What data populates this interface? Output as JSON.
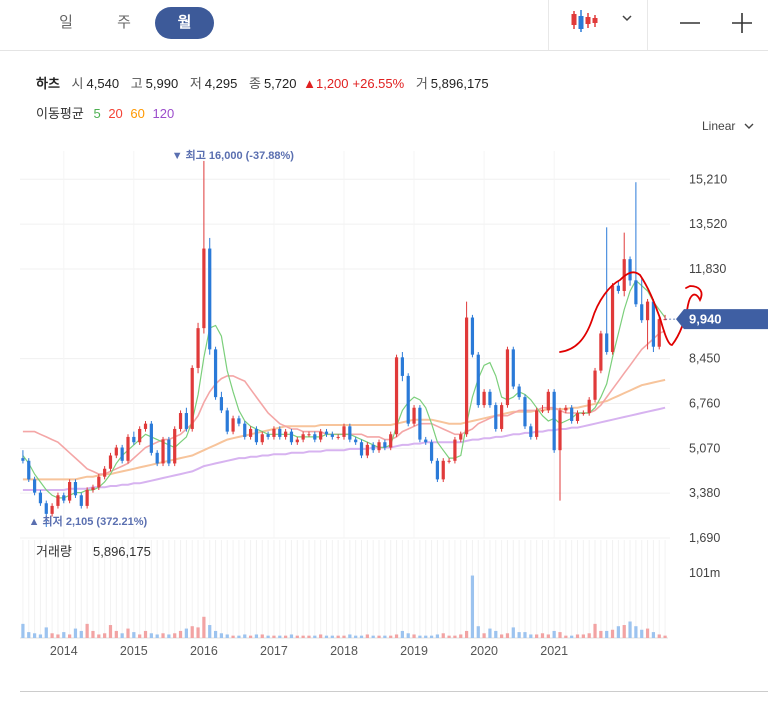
{
  "tabs": [
    {
      "label": "일",
      "active": false
    },
    {
      "label": "주",
      "active": false
    },
    {
      "label": "월",
      "active": true
    }
  ],
  "toolbar": {
    "chart_type_icon": "candlestick-icon",
    "dropdown_icon": "chevron-down-icon",
    "zoom_out_icon": "minus-icon",
    "zoom_in_icon": "plus-icon"
  },
  "quote": {
    "name": "하츠",
    "open_label": "시",
    "open": "4,540",
    "high_label": "고",
    "high": "5,990",
    "low_label": "저",
    "low": "4,295",
    "close_label": "종",
    "close": "5,720",
    "change": "▲1,200",
    "change_pct": "+26.55%",
    "volume_label": "거",
    "volume": "5,896,175"
  },
  "ma_legend": {
    "label": "이동평균",
    "items": [
      {
        "period": "5",
        "color": "#4caf50"
      },
      {
        "period": "20",
        "color": "#f44336"
      },
      {
        "period": "60",
        "color": "#ff9800"
      },
      {
        "period": "120",
        "color": "#9c4dcc"
      }
    ]
  },
  "scale_label": "Linear",
  "colors": {
    "up": "#e03a3a",
    "down": "#2a7ad8",
    "current_price_bg": "#3f5fa3",
    "annotation": "#e00000",
    "max_label": "#5a6fb0"
  },
  "chart_data": {
    "type": "candlestick",
    "title": "하츠",
    "x_ticks": [
      "2014",
      "2015",
      "2016",
      "2017",
      "2018",
      "2019",
      "2020",
      "2021"
    ],
    "y_ticks": [
      "15,210",
      "13,520",
      "11,830",
      "9,940",
      "8,450",
      "6,760",
      "5,070",
      "3,380",
      "1,690"
    ],
    "y_tick_values": [
      15210,
      13520,
      11830,
      8450,
      6760,
      5070,
      3380,
      1690
    ],
    "ylim": [
      1690,
      15900
    ],
    "current_price": "9,940",
    "current_price_value": 9940,
    "max_label": "▼ 최고 16,000 (-37.88%)",
    "max": {
      "value": 16000,
      "date": "2015-08"
    },
    "min_label": "▲ 최저 2,105 (372.21%)",
    "min": {
      "value": 2105,
      "date": "2013-08"
    },
    "volume_label": "거래량",
    "volume_value": "5,896,175",
    "volume_axis_label": "101m",
    "volume_axis_value": 101000000,
    "candles_open": [
      4700,
      4600,
      3900,
      3400,
      3000,
      2600,
      2900,
      3300,
      3100,
      3800,
      3300,
      2900,
      3500,
      3600,
      4000,
      4300,
      4800,
      5100,
      4600,
      5500,
      5300,
      5800,
      6000,
      4900,
      4500,
      5400,
      4500,
      5800,
      6400,
      5800,
      8100,
      9600,
      12600,
      8800,
      7000,
      6500,
      5700,
      6200,
      6000,
      5500,
      5800,
      5300,
      5600,
      5500,
      5800,
      5500,
      5700,
      5300,
      5400,
      5600,
      5600,
      5400,
      5700,
      5600,
      5500,
      5500,
      5900,
      5400,
      5300,
      4800,
      5200,
      5000,
      5300,
      5100,
      5600,
      8500,
      7800,
      6000,
      6600,
      5400,
      5300,
      4600,
      3900,
      4600,
      4600,
      5400,
      5600,
      10000,
      8600,
      6700,
      7200,
      6700,
      5800,
      6700,
      8800,
      7400,
      7000,
      5900,
      5500,
      6500,
      6500,
      7200,
      5000,
      6500,
      6600,
      6100,
      6400,
      6400,
      6900,
      8000,
      9400,
      8700,
      11200,
      11000,
      12200,
      11400,
      10500,
      9900,
      10600,
      8900,
      9940
    ],
    "candles_close": [
      4600,
      3900,
      3400,
      3000,
      2600,
      2900,
      3300,
      3100,
      3800,
      3300,
      2900,
      3500,
      3600,
      4000,
      4300,
      4800,
      5100,
      4600,
      5500,
      5300,
      5800,
      6000,
      4900,
      4500,
      5400,
      4500,
      5800,
      6400,
      5800,
      8100,
      9600,
      12600,
      8800,
      7000,
      6500,
      5700,
      6200,
      6000,
      5500,
      5800,
      5300,
      5600,
      5500,
      5800,
      5500,
      5700,
      5300,
      5400,
      5600,
      5600,
      5400,
      5700,
      5600,
      5500,
      5500,
      5900,
      5400,
      5300,
      4800,
      5200,
      5000,
      5300,
      5100,
      5600,
      8500,
      7800,
      6000,
      6600,
      5400,
      5300,
      4600,
      3900,
      4600,
      4600,
      5400,
      5600,
      10000,
      8600,
      6700,
      7200,
      6700,
      5800,
      6700,
      8800,
      7400,
      7000,
      5900,
      5500,
      6500,
      6500,
      7200,
      5000,
      6500,
      6600,
      6100,
      6400,
      6400,
      6900,
      8000,
      9400,
      8700,
      11200,
      11000,
      12200,
      11400,
      10500,
      9900,
      10600,
      8900,
      9940,
      9940
    ],
    "candles_high": [
      5000,
      4700,
      4000,
      3500,
      3100,
      3000,
      3400,
      3400,
      3900,
      3900,
      3400,
      3600,
      3700,
      4100,
      4400,
      4900,
      5200,
      5200,
      5600,
      5700,
      5900,
      6100,
      6100,
      5000,
      5500,
      5500,
      5900,
      6500,
      6600,
      8200,
      9800,
      15900,
      13000,
      8900,
      7200,
      6600,
      6300,
      6300,
      6100,
      5900,
      5900,
      5700,
      5700,
      5900,
      5900,
      5800,
      5800,
      5500,
      5700,
      5700,
      5700,
      5800,
      5800,
      5700,
      5600,
      6000,
      6000,
      5500,
      5400,
      5300,
      5300,
      5400,
      5400,
      5700,
      8600,
      8700,
      7900,
      6700,
      6700,
      5500,
      5400,
      4700,
      4700,
      4700,
      5500,
      5700,
      10600,
      10100,
      8700,
      7300,
      7300,
      6800,
      6800,
      8900,
      8900,
      7500,
      7100,
      6000,
      6600,
      6700,
      7300,
      7300,
      6600,
      6700,
      6700,
      6500,
      6500,
      7000,
      8100,
      9500,
      13400,
      11300,
      11400,
      13200,
      12300,
      15100,
      11500,
      10700,
      10700,
      10100,
      10100
    ],
    "candles_low": [
      4500,
      3800,
      3300,
      2900,
      2105,
      2500,
      2800,
      3000,
      3000,
      3200,
      2800,
      2800,
      3400,
      3500,
      3900,
      4200,
      4700,
      4500,
      4500,
      5200,
      5200,
      5700,
      4800,
      4400,
      4400,
      4400,
      4400,
      5700,
      5700,
      5700,
      7900,
      9400,
      8600,
      6900,
      6400,
      5600,
      5600,
      5900,
      5400,
      5400,
      5200,
      5200,
      5400,
      5400,
      5400,
      5400,
      5200,
      5200,
      5300,
      5500,
      5300,
      5300,
      5500,
      5400,
      5400,
      5400,
      5300,
      5200,
      4700,
      4700,
      4900,
      4900,
      5000,
      5000,
      5500,
      7600,
      5900,
      5900,
      5300,
      5200,
      4500,
      3800,
      3800,
      4500,
      4500,
      5300,
      5500,
      8500,
      6600,
      6600,
      6600,
      5700,
      5700,
      6600,
      7300,
      6900,
      5800,
      5400,
      5400,
      6400,
      6400,
      4900,
      3100,
      6400,
      6000,
      6000,
      6300,
      6300,
      6800,
      7900,
      8600,
      8600,
      10900,
      10800,
      11200,
      10400,
      9800,
      8800,
      8700,
      8800,
      9900
    ],
    "ma5": [
      4800,
      4500,
      4100,
      3800,
      3500,
      3300,
      3200,
      3200,
      3300,
      3400,
      3400,
      3500,
      3500,
      3600,
      3800,
      4100,
      4500,
      4800,
      5000,
      5200,
      5400,
      5600,
      5500,
      5400,
      5300,
      5200,
      5100,
      5300,
      5500,
      6100,
      7100,
      8500,
      9600,
      9700,
      9300,
      8000,
      7200,
      6500,
      6100,
      5900,
      5800,
      5700,
      5600,
      5600,
      5600,
      5600,
      5600,
      5500,
      5500,
      5500,
      5500,
      5500,
      5600,
      5600,
      5600,
      5600,
      5600,
      5500,
      5400,
      5300,
      5200,
      5100,
      5100,
      5200,
      5900,
      6500,
      6800,
      7000,
      6900,
      6600,
      6000,
      5300,
      5000,
      4700,
      4700,
      4800,
      6000,
      7000,
      7700,
      8200,
      8300,
      7800,
      7000,
      6900,
      7000,
      7200,
      7100,
      6900,
      6600,
      6300,
      6100,
      6200,
      6000,
      6100,
      6200,
      6400,
      6400,
      6400,
      6600,
      7000,
      7500,
      8500,
      9400,
      10300,
      11000,
      11400,
      11200,
      11000,
      10600,
      10300,
      10000
    ],
    "ma20": [
      5700,
      5700,
      5700,
      5600,
      5500,
      5400,
      5300,
      5100,
      4900,
      4700,
      4500,
      4300,
      4200,
      4100,
      4100,
      4200,
      4300,
      4400,
      4500,
      4700,
      4900,
      5100,
      5200,
      5300,
      5400,
      5400,
      5500,
      5600,
      5800,
      6000,
      6300,
      6800,
      7200,
      7500,
      7700,
      7800,
      7800,
      7700,
      7600,
      7300,
      7000,
      6700,
      6400,
      6200,
      6000,
      5900,
      5800,
      5800,
      5700,
      5700,
      5700,
      5700,
      5600,
      5600,
      5600,
      5600,
      5600,
      5600,
      5600,
      5500,
      5500,
      5500,
      5400,
      5400,
      5500,
      5700,
      5800,
      5900,
      6000,
      6000,
      6000,
      5900,
      5800,
      5700,
      5600,
      5600,
      5700,
      5800,
      6000,
      6100,
      6200,
      6300,
      6300,
      6300,
      6400,
      6500,
      6500,
      6500,
      6500,
      6600,
      6600,
      6600,
      6500,
      6400,
      6400,
      6400,
      6400,
      6400,
      6500,
      6700,
      7000,
      7300,
      7600,
      7900,
      8200,
      8500,
      8800,
      9000,
      9200,
      9400,
      9500
    ],
    "ma60": [
      3900,
      3900,
      3900,
      3900,
      3900,
      3900,
      3900,
      3900,
      3900,
      3900,
      3950,
      4000,
      4000,
      4050,
      4100,
      4100,
      4150,
      4200,
      4250,
      4300,
      4350,
      4400,
      4450,
      4500,
      4550,
      4600,
      4650,
      4700,
      4750,
      4800,
      4900,
      5000,
      5100,
      5200,
      5300,
      5400,
      5450,
      5500,
      5550,
      5600,
      5650,
      5700,
      5750,
      5800,
      5850,
      5900,
      5900,
      5900,
      5900,
      5900,
      5900,
      5950,
      5950,
      5950,
      5950,
      5950,
      5950,
      5950,
      5950,
      5950,
      5950,
      5950,
      5950,
      5950,
      6000,
      6050,
      6100,
      6150,
      6150,
      6150,
      6150,
      6100,
      6050,
      6000,
      6000,
      6000,
      6050,
      6100,
      6150,
      6200,
      6250,
      6300,
      6350,
      6400,
      6450,
      6450,
      6450,
      6450,
      6500,
      6500,
      6550,
      6550,
      6550,
      6550,
      6600,
      6600,
      6650,
      6700,
      6750,
      6800,
      6850,
      6950,
      7050,
      7150,
      7250,
      7350,
      7450,
      7500,
      7550,
      7600,
      7650
    ],
    "ma120": [
      3500,
      3500,
      3500,
      3500,
      3500,
      3500,
      3500,
      3500,
      3550,
      3550,
      3550,
      3550,
      3600,
      3600,
      3600,
      3650,
      3650,
      3700,
      3700,
      3750,
      3750,
      3800,
      3850,
      3900,
      3950,
      4000,
      4050,
      4100,
      4150,
      4200,
      4300,
      4400,
      4450,
      4500,
      4550,
      4600,
      4650,
      4700,
      4700,
      4750,
      4750,
      4800,
      4800,
      4850,
      4850,
      4850,
      4900,
      4900,
      4900,
      4950,
      4950,
      4950,
      5000,
      5000,
      5000,
      5000,
      5050,
      5050,
      5050,
      5050,
      5100,
      5100,
      5100,
      5100,
      5150,
      5200,
      5200,
      5250,
      5250,
      5300,
      5300,
      5300,
      5300,
      5300,
      5300,
      5300,
      5350,
      5400,
      5400,
      5450,
      5450,
      5500,
      5500,
      5550,
      5600,
      5600,
      5650,
      5650,
      5700,
      5700,
      5750,
      5750,
      5800,
      5800,
      5850,
      5850,
      5900,
      5950,
      6000,
      6050,
      6100,
      6150,
      6200,
      6250,
      6300,
      6350,
      6400,
      6450,
      6500,
      6550,
      6600
    ],
    "volume": [
      12,
      5,
      4,
      3,
      9,
      4,
      3,
      5,
      3,
      8,
      6,
      12,
      6,
      3,
      4,
      11,
      6,
      4,
      8,
      5,
      3,
      6,
      4,
      3,
      4,
      3,
      4,
      6,
      8,
      10,
      9,
      18,
      11,
      6,
      4,
      3,
      2,
      2,
      3,
      2,
      3,
      3,
      2,
      2,
      2,
      2,
      3,
      2,
      2,
      2,
      2,
      3,
      2,
      2,
      2,
      2,
      3,
      2,
      2,
      3,
      2,
      2,
      2,
      2,
      3,
      6,
      4,
      3,
      2,
      2,
      2,
      3,
      4,
      2,
      2,
      3,
      6,
      53,
      10,
      4,
      8,
      6,
      3,
      4,
      9,
      5,
      5,
      3,
      3,
      4,
      3,
      6,
      5,
      2,
      2,
      3,
      3,
      4,
      12,
      6,
      6,
      7,
      10,
      11,
      14,
      10,
      7,
      8,
      5,
      3,
      2
    ]
  }
}
